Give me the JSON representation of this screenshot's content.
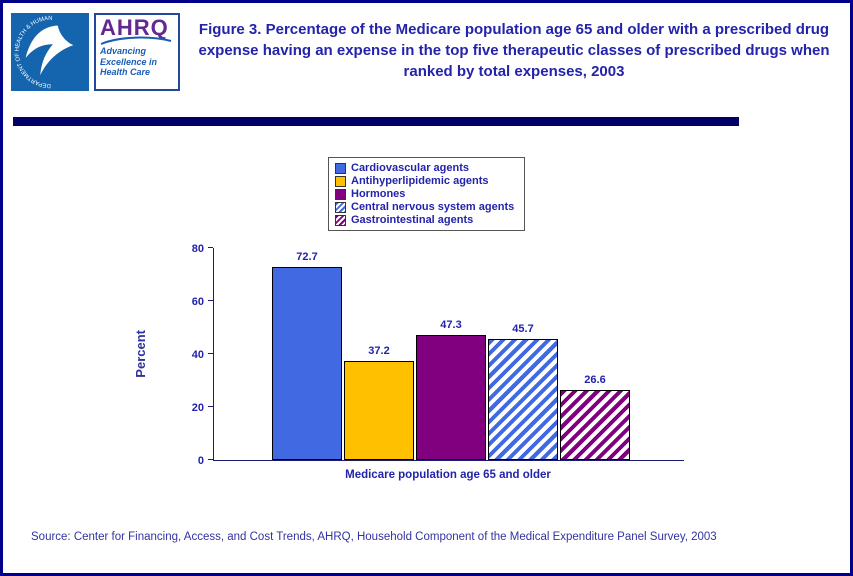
{
  "header": {
    "ahrq_text": "AHRQ",
    "ahrq_tagline": "Advancing Excellence in Health Care",
    "hhs_ring_text": "DEPARTMENT OF HEALTH & HUMAN SERVICES • USA"
  },
  "chart_data": {
    "type": "bar",
    "title": "Figure 3. Percentage of the Medicare population age 65 and older with a prescribed drug expense having an expense in the top five therapeutic classes of prescribed drugs when ranked by total expenses, 2003",
    "categories": [
      "Medicare population age 65 and older"
    ],
    "series": [
      {
        "name": "Cardiovascular agents",
        "value": 72.7,
        "fill": "#4169E1",
        "pattern": "solid"
      },
      {
        "name": "Antihyperlipidemic agents",
        "value": 37.2,
        "fill": "#FFC000",
        "pattern": "solid"
      },
      {
        "name": "Hormones",
        "value": 47.3,
        "fill": "#800080",
        "pattern": "solid"
      },
      {
        "name": "Central nervous system agents",
        "value": 45.7,
        "fill": "#4169E1",
        "pattern": "diagonal-stripes"
      },
      {
        "name": "Gastrointestinal agents",
        "value": 26.6,
        "fill": "#800080",
        "pattern": "diagonal-stripes"
      }
    ],
    "xlabel": "Medicare population age 65 and older",
    "ylabel": "Percent",
    "ylim": [
      0,
      80
    ],
    "yticks": [
      0,
      20,
      40,
      60,
      80
    ],
    "legend_position": "top",
    "grid": false
  },
  "footer": {
    "source": "Source: Center for Financing, Access, and Cost Trends, AHRQ, Household Component of the Medical Expenditure Panel Survey, 2003"
  }
}
